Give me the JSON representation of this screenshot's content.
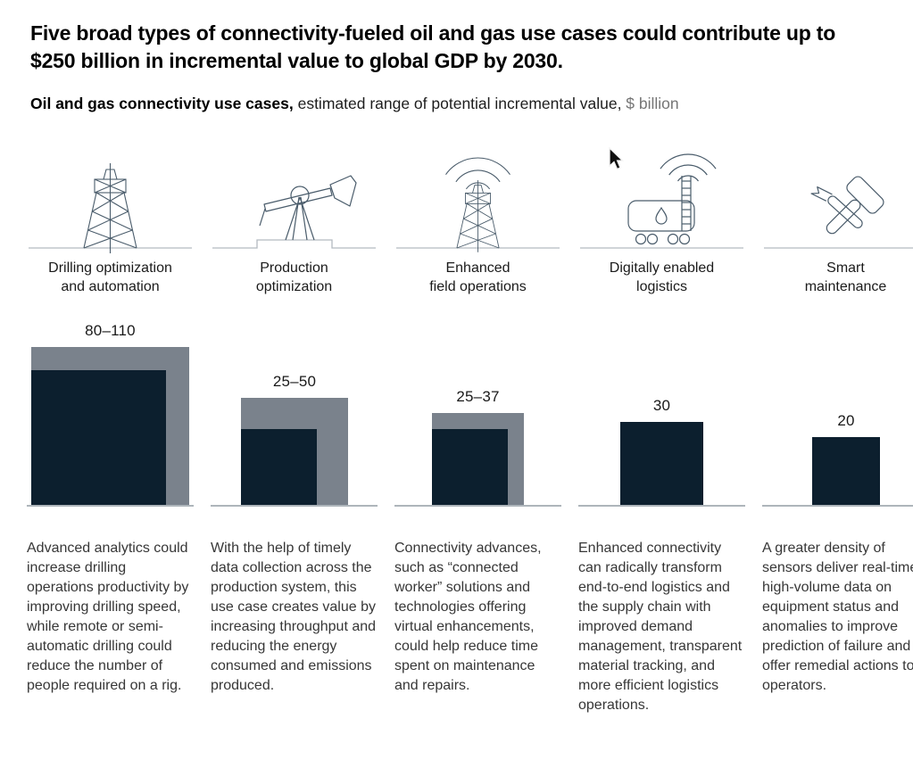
{
  "header": {
    "title": "Five broad types of connectivity-fueled oil and gas use cases could contribute up to $250 billion in incremental value to global GDP by 2030.",
    "subtitle_bold": "Oil and gas connectivity use cases,",
    "subtitle_regular": " estimated range of potential incremental value,",
    "subtitle_unit": " $ billion"
  },
  "columns": [
    {
      "icon": "oil-derrick-icon",
      "title": "Drilling optimization\nand automation",
      "description": "Advanced analytics could increase drilling operations productivity by improving drilling speed, while remote or semi-automatic drilling could reduce the number of people required on a rig."
    },
    {
      "icon": "pumpjack-icon",
      "title": "Production\noptimization",
      "description": "With the help of timely data collection across the production system, this use case creates value by increasing throughput and reducing the energy consumed and emissions produced."
    },
    {
      "icon": "connected-derrick-icon",
      "title": "Enhanced\nfield operations",
      "description": "Connectivity advances, such as “connected worker” solutions and technologies offering virtual enhancements, could help reduce time spent on maintenance and repairs."
    },
    {
      "icon": "connected-tanker-icon",
      "title": "Digitally enabled\nlogistics",
      "description": "Enhanced connectivity can radically transform end-to-end logistics and the supply chain with improved demand management, transparent material tracking, and more efficient logistics operations."
    },
    {
      "icon": "crossed-tools-icon",
      "title": "Smart\nmaintenance",
      "description": "A greater density of sensors deliver real-time, high-volume data on equipment status and anomalies to improve prediction of failure and offer remedial actions to operators."
    }
  ],
  "chart_data": {
    "type": "bar",
    "subtype": "range-bars-rendered-as-area-proportional-squares",
    "title": "Oil and gas connectivity use cases",
    "subtitle": "estimated range of potential incremental value",
    "unit": "$ billion",
    "categories": [
      "Drilling optimization and automation",
      "Production optimization",
      "Enhanced field operations",
      "Digitally enabled logistics",
      "Smart maintenance"
    ],
    "bars": [
      {
        "low": 80,
        "high": 110,
        "label": "80–110"
      },
      {
        "low": 25,
        "high": 50,
        "label": "25–50"
      },
      {
        "low": 25,
        "high": 37,
        "label": "25–37"
      },
      {
        "low": 30,
        "high": null,
        "label": "30"
      },
      {
        "low": 20,
        "high": null,
        "label": "20"
      }
    ],
    "colors": {
      "low_bar": "#0c1f2e",
      "high_bar": "#7a828c"
    },
    "legend": "none",
    "axes": "none",
    "baseline_color": "#aeb5bb"
  }
}
